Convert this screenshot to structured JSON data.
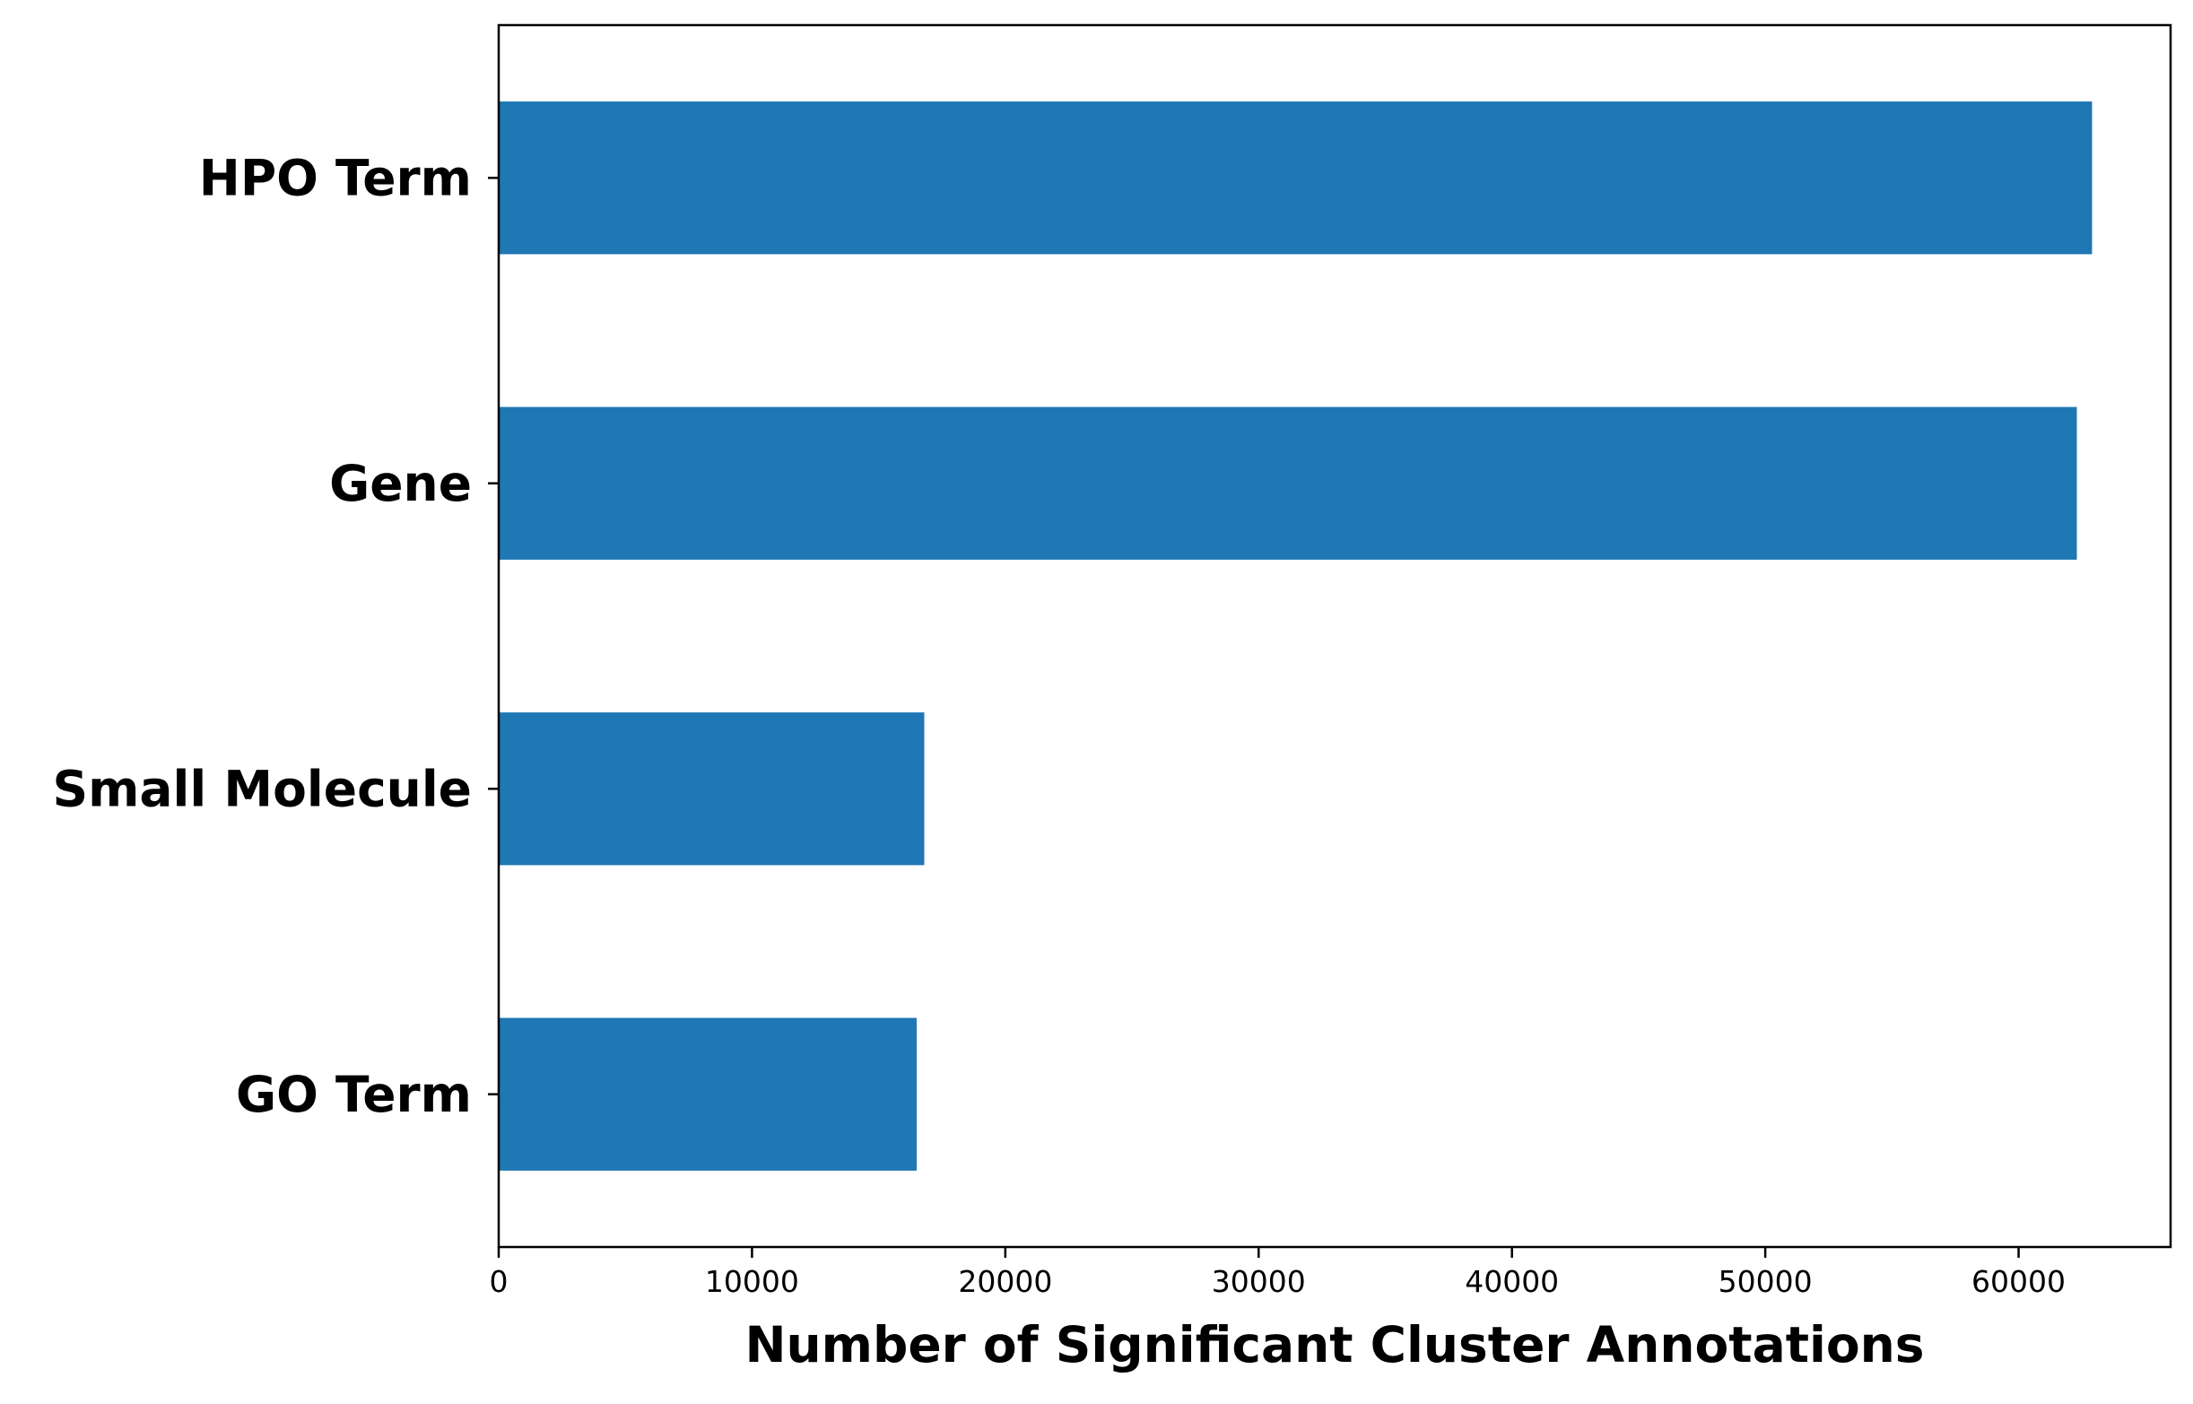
{
  "chart_data": {
    "type": "bar",
    "orientation": "horizontal",
    "categories": [
      "HPO Term",
      "Gene",
      "Small Molecule",
      "GO Term"
    ],
    "values": [
      62900,
      62300,
      16800,
      16500
    ],
    "title": "",
    "xlabel": "Number of Significant Cluster Annotations",
    "ylabel": "",
    "xlim": [
      0,
      66000
    ],
    "xticks": [
      0,
      10000,
      20000,
      30000,
      40000,
      50000,
      60000
    ],
    "xtick_labels": [
      "0",
      "10000",
      "20000",
      "30000",
      "40000",
      "50000",
      "60000"
    ],
    "grid": false,
    "legend": "none",
    "bar_color": "#1f77b4"
  }
}
